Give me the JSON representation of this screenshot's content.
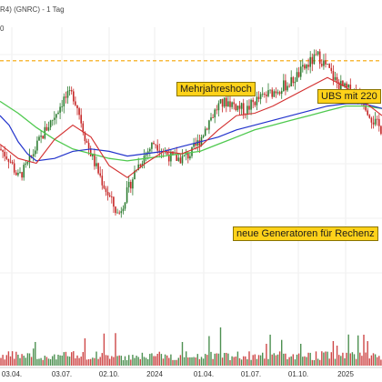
{
  "header": {
    "title": "R4) (GNRC) - 1 Tag",
    "subline": "0"
  },
  "chart_data": {
    "type": "candlestick",
    "x_ticks": [
      "03.04.",
      "03.07.",
      "02.10.",
      "2024",
      "01.04.",
      "01.07.",
      "01.10.",
      "2025"
    ],
    "y_range": [
      0,
      100
    ],
    "annotations": [
      {
        "text": "Mehrjahreshoch"
      },
      {
        "text": "UBS mit 220"
      },
      {
        "text": "neue Generatoren für Rechenz"
      }
    ],
    "resistance_level": 89,
    "colors": {
      "up": "#2e7d32",
      "down": "#c62828",
      "ma_short": "#d32f2f",
      "ma_mid": "#2233cc",
      "ma_long": "#4fc94f",
      "resistance": "#f5a300",
      "annotation_bg": "#ffd21a",
      "volume_up": "#2e7d32",
      "volume_down": "#c62828"
    },
    "price_path": [
      [
        0,
        52
      ],
      [
        10,
        48
      ],
      [
        20,
        40
      ],
      [
        30,
        45
      ],
      [
        40,
        53
      ],
      [
        50,
        60
      ],
      [
        60,
        66
      ],
      [
        70,
        73
      ],
      [
        80,
        75
      ],
      [
        85,
        70
      ],
      [
        95,
        55
      ],
      [
        105,
        45
      ],
      [
        115,
        36
      ],
      [
        125,
        28
      ],
      [
        130,
        24
      ],
      [
        140,
        34
      ],
      [
        150,
        44
      ],
      [
        160,
        50
      ],
      [
        170,
        55
      ],
      [
        180,
        51
      ],
      [
        190,
        48
      ],
      [
        200,
        48
      ],
      [
        210,
        50
      ],
      [
        220,
        56
      ],
      [
        230,
        64
      ],
      [
        240,
        70
      ],
      [
        250,
        72
      ],
      [
        260,
        70
      ],
      [
        270,
        68
      ],
      [
        280,
        72
      ],
      [
        290,
        74
      ],
      [
        300,
        76
      ],
      [
        310,
        78
      ],
      [
        320,
        80
      ],
      [
        330,
        84
      ],
      [
        340,
        88
      ],
      [
        350,
        91
      ],
      [
        360,
        86
      ],
      [
        370,
        80
      ],
      [
        380,
        77
      ],
      [
        390,
        76
      ],
      [
        400,
        72
      ],
      [
        410,
        64
      ],
      [
        420,
        60
      ]
    ],
    "ma_short": [
      [
        0,
        54
      ],
      [
        20,
        48
      ],
      [
        40,
        46
      ],
      [
        60,
        56
      ],
      [
        80,
        62
      ],
      [
        100,
        57
      ],
      [
        120,
        45
      ],
      [
        140,
        40
      ],
      [
        160,
        46
      ],
      [
        180,
        51
      ],
      [
        200,
        50
      ],
      [
        220,
        53
      ],
      [
        240,
        60
      ],
      [
        260,
        66
      ],
      [
        280,
        67
      ],
      [
        300,
        70
      ],
      [
        320,
        74
      ],
      [
        340,
        78
      ],
      [
        360,
        82
      ],
      [
        380,
        78
      ],
      [
        400,
        72
      ],
      [
        420,
        66
      ]
    ],
    "ma_mid": [
      [
        0,
        66
      ],
      [
        10,
        62
      ],
      [
        20,
        55
      ],
      [
        30,
        50
      ],
      [
        40,
        47
      ],
      [
        60,
        48
      ],
      [
        80,
        51
      ],
      [
        100,
        52
      ],
      [
        120,
        51
      ],
      [
        140,
        49
      ],
      [
        160,
        50
      ],
      [
        180,
        51
      ],
      [
        200,
        53
      ],
      [
        220,
        55
      ],
      [
        240,
        57
      ],
      [
        260,
        60
      ],
      [
        280,
        62
      ],
      [
        300,
        64
      ],
      [
        320,
        66
      ],
      [
        340,
        68
      ],
      [
        360,
        70
      ],
      [
        380,
        71
      ],
      [
        400,
        71
      ],
      [
        420,
        69
      ]
    ],
    "ma_long": [
      [
        0,
        72
      ],
      [
        20,
        67
      ],
      [
        40,
        61
      ],
      [
        60,
        56
      ],
      [
        80,
        52
      ],
      [
        100,
        50
      ],
      [
        120,
        48
      ],
      [
        140,
        47
      ],
      [
        160,
        48
      ],
      [
        180,
        49
      ],
      [
        200,
        50
      ],
      [
        220,
        51
      ],
      [
        240,
        54
      ],
      [
        260,
        57
      ],
      [
        280,
        60
      ],
      [
        300,
        62
      ],
      [
        320,
        64
      ],
      [
        340,
        66
      ],
      [
        360,
        68
      ],
      [
        380,
        70
      ],
      [
        400,
        70
      ],
      [
        420,
        69
      ]
    ]
  }
}
